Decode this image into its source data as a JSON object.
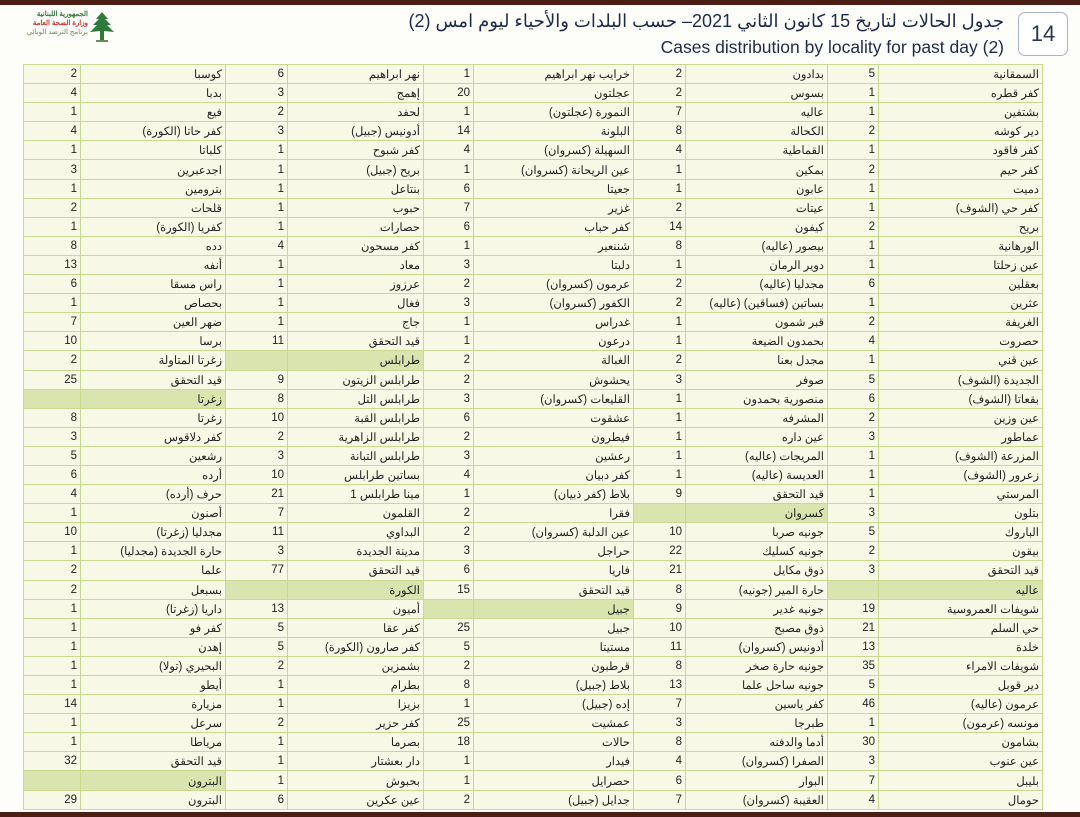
{
  "logo": {
    "line1": "الجمهورية اللبنانية",
    "line2": "وزارة الصحة العامة",
    "line3": "برنامج الترصد الوبائي"
  },
  "header": {
    "title_ar": "جدول الحالات لتاريخ 15 كانون الثاني 2021– حسب البلدات والأحياء ليوم امس (2)",
    "title_en": "Cases distribution by locality for past day (2)",
    "page_number": "14"
  },
  "colors": {
    "border": "#c9d98f",
    "section_highlight": "#d9e4ae",
    "title": "#1e2a4a",
    "band": "#4a1e14"
  },
  "groups": [
    [
      {
        "n": "السمقانية",
        "c": "5"
      },
      {
        "n": "كفر قطره",
        "c": "1"
      },
      {
        "n": "بشتفين",
        "c": "1"
      },
      {
        "n": "دير كوشه",
        "c": "2"
      },
      {
        "n": "كفر فاقود",
        "c": "1"
      },
      {
        "n": "كفر حيم",
        "c": "2"
      },
      {
        "n": "دميت",
        "c": "1"
      },
      {
        "n": "كفر حي (الشوف)",
        "c": "1"
      },
      {
        "n": "بريح",
        "c": "2"
      },
      {
        "n": "الورهانية",
        "c": "1"
      },
      {
        "n": "عين زحلتا",
        "c": "1"
      },
      {
        "n": "بعقلين",
        "c": "6"
      },
      {
        "n": "عثرين",
        "c": "1"
      },
      {
        "n": "الغريفة",
        "c": "2"
      },
      {
        "n": "حصروت",
        "c": "4"
      },
      {
        "n": "عين قني",
        "c": "1"
      },
      {
        "n": "الجديدة (الشوف)",
        "c": "5"
      },
      {
        "n": "بقعاتا (الشوف)",
        "c": "6"
      },
      {
        "n": "عين وزين",
        "c": "2"
      },
      {
        "n": "عماطور",
        "c": "3"
      },
      {
        "n": "المزرعة (الشوف)",
        "c": "1"
      },
      {
        "n": "زعرور (الشوف)",
        "c": "1"
      },
      {
        "n": "المرستي",
        "c": "1"
      },
      {
        "n": "بتلون",
        "c": "3"
      },
      {
        "n": "الباروك",
        "c": "5"
      },
      {
        "n": "بيقون",
        "c": "2"
      },
      {
        "n": "قيد التحقق",
        "c": "3"
      },
      {
        "n": "عاليه",
        "c": "",
        "h": true
      },
      {
        "n": "شويفات العمروسية",
        "c": "19"
      },
      {
        "n": "حي السلم",
        "c": "21"
      },
      {
        "n": "خلدة",
        "c": "13"
      },
      {
        "n": "شويفات الامراء",
        "c": "35"
      },
      {
        "n": "دير قوبل",
        "c": "5"
      },
      {
        "n": "عرمون (عاليه)",
        "c": "46"
      },
      {
        "n": "مونسه (عرمون)",
        "c": "1"
      },
      {
        "n": "بشامون",
        "c": "30"
      },
      {
        "n": "عين عنوب",
        "c": "3"
      },
      {
        "n": "بليبل",
        "c": "7"
      },
      {
        "n": "حومال",
        "c": "4"
      }
    ],
    [
      {
        "n": "بدادون",
        "c": "2"
      },
      {
        "n": "بسوس",
        "c": "2"
      },
      {
        "n": "عاليه",
        "c": "7"
      },
      {
        "n": "الكحالة",
        "c": "8"
      },
      {
        "n": "القماطية",
        "c": "4"
      },
      {
        "n": "بمكين",
        "c": "1"
      },
      {
        "n": "عابون",
        "c": "1"
      },
      {
        "n": "عيتات",
        "c": "2"
      },
      {
        "n": "كيفون",
        "c": "14"
      },
      {
        "n": "بيصور (عاليه)",
        "c": "8"
      },
      {
        "n": "دوير الرمان",
        "c": "1"
      },
      {
        "n": "مجدليا (عاليه)",
        "c": "2"
      },
      {
        "n": "بساتين (فساقين) (عاليه)",
        "c": "2"
      },
      {
        "n": "قبر شمون",
        "c": "1"
      },
      {
        "n": "بحمدون الضيعة",
        "c": "1"
      },
      {
        "n": "مجدل بعنا",
        "c": "2"
      },
      {
        "n": "صوفر",
        "c": "3"
      },
      {
        "n": "منصورية بحمدون",
        "c": "1"
      },
      {
        "n": "المشرفه",
        "c": "1"
      },
      {
        "n": "عين داره",
        "c": "1"
      },
      {
        "n": "المريجات (عاليه)",
        "c": "1"
      },
      {
        "n": "العديسة (عاليه)",
        "c": "1"
      },
      {
        "n": "قيد التحقق",
        "c": "9"
      },
      {
        "n": "كسروان",
        "c": "",
        "h": true
      },
      {
        "n": "جونيه صربا",
        "c": "10"
      },
      {
        "n": "جونيه كسليك",
        "c": "22"
      },
      {
        "n": "ذوق مكايل",
        "c": "21"
      },
      {
        "n": "حارة المير (جونيه)",
        "c": "8"
      },
      {
        "n": "جونيه غدير",
        "c": "9"
      },
      {
        "n": "ذوق مصبح",
        "c": "10"
      },
      {
        "n": "أدونيس (كسروان)",
        "c": "11"
      },
      {
        "n": "جونيه حارة صخر",
        "c": "8"
      },
      {
        "n": "جونيه ساحل علما",
        "c": "13"
      },
      {
        "n": "كفر ياسين",
        "c": "7"
      },
      {
        "n": "طبرجا",
        "c": "3"
      },
      {
        "n": "أدما والدفنه",
        "c": "8"
      },
      {
        "n": "الصفرا (كسروان)",
        "c": "4"
      },
      {
        "n": "البوار",
        "c": "6"
      },
      {
        "n": "العقيبة (كسروان)",
        "c": "7"
      }
    ],
    [
      {
        "n": "خرايب نهر ابراهيم",
        "c": "1"
      },
      {
        "n": "عجلتون",
        "c": "20"
      },
      {
        "n": "النمورة (عجلتون)",
        "c": "1"
      },
      {
        "n": "البلونة",
        "c": "14"
      },
      {
        "n": "السهيلة (كسروان)",
        "c": "4"
      },
      {
        "n": "عين الريحانة (كسروان)",
        "c": "1"
      },
      {
        "n": "جعيتا",
        "c": "6"
      },
      {
        "n": "غزير",
        "c": "7"
      },
      {
        "n": "كفر حباب",
        "c": "6"
      },
      {
        "n": "شننعير",
        "c": "1"
      },
      {
        "n": "دلبتا",
        "c": "3"
      },
      {
        "n": "عرمون (كسروان)",
        "c": "2"
      },
      {
        "n": "الكفور (كسروان)",
        "c": "3"
      },
      {
        "n": "غدراس",
        "c": "1"
      },
      {
        "n": "درعون",
        "c": "1"
      },
      {
        "n": "الغبالة",
        "c": "2"
      },
      {
        "n": "يحشوش",
        "c": "2"
      },
      {
        "n": "القليعات (كسروان)",
        "c": "3"
      },
      {
        "n": "عشقوت",
        "c": "6"
      },
      {
        "n": "فيطرون",
        "c": "2"
      },
      {
        "n": "رعشين",
        "c": "3"
      },
      {
        "n": "كفر دبيان",
        "c": "4"
      },
      {
        "n": "بلاط (كفر ذبيان)",
        "c": "1"
      },
      {
        "n": "فقرا",
        "c": "2"
      },
      {
        "n": "عين الدلبة (كسروان)",
        "c": "2"
      },
      {
        "n": "حراجل",
        "c": "3"
      },
      {
        "n": "فاريا",
        "c": "6"
      },
      {
        "n": "قيد التحقق",
        "c": "15"
      },
      {
        "n": "جبيل",
        "c": "",
        "h": true
      },
      {
        "n": "جبيل",
        "c": "25"
      },
      {
        "n": "مستيتا",
        "c": "5"
      },
      {
        "n": "قرطبون",
        "c": "2"
      },
      {
        "n": "بلاط (جبيل)",
        "c": "8"
      },
      {
        "n": "إده (جبيل)",
        "c": "1"
      },
      {
        "n": "عمشيت",
        "c": "25"
      },
      {
        "n": "حالات",
        "c": "18"
      },
      {
        "n": "فيدار",
        "c": "1"
      },
      {
        "n": "حصرايل",
        "c": "1"
      },
      {
        "n": "جدايل (جبيل)",
        "c": "2"
      }
    ],
    [
      {
        "n": "نهر ابراهيم",
        "c": "6"
      },
      {
        "n": "إهمج",
        "c": "3"
      },
      {
        "n": "لحفد",
        "c": "2"
      },
      {
        "n": "أدونيس (جبيل)",
        "c": "3"
      },
      {
        "n": "كفر شبوح",
        "c": "1"
      },
      {
        "n": "بريح (جبيل)",
        "c": "1"
      },
      {
        "n": "بنتاعل",
        "c": "1"
      },
      {
        "n": "حبوب",
        "c": "1"
      },
      {
        "n": "حصارات",
        "c": "1"
      },
      {
        "n": "كفر مسحون",
        "c": "4"
      },
      {
        "n": "معاد",
        "c": "1"
      },
      {
        "n": "عرزوز",
        "c": "1"
      },
      {
        "n": "فغال",
        "c": "1"
      },
      {
        "n": "جاج",
        "c": "1"
      },
      {
        "n": "قيد التحقق",
        "c": "11"
      },
      {
        "n": "طرابلس",
        "c": "",
        "h": true
      },
      {
        "n": "طرابلس الزيتون",
        "c": "9"
      },
      {
        "n": "طرابلس التل",
        "c": "8"
      },
      {
        "n": "طرابلس القبة",
        "c": "10"
      },
      {
        "n": "طرابلس الزاهرية",
        "c": "2"
      },
      {
        "n": "طرابلس التبانة",
        "c": "3"
      },
      {
        "n": "بساتين طرابلس",
        "c": "10"
      },
      {
        "n": "مينا طرابلس 1",
        "c": "21"
      },
      {
        "n": "القلمون",
        "c": "7"
      },
      {
        "n": "البداوي",
        "c": "11"
      },
      {
        "n": "مدينة الجديدة",
        "c": "3"
      },
      {
        "n": "قيد التحقق",
        "c": "77"
      },
      {
        "n": "الكورة",
        "c": "",
        "h": true
      },
      {
        "n": "أميون",
        "c": "13"
      },
      {
        "n": "كفر عقا",
        "c": "5"
      },
      {
        "n": "كفر صارون (الكورة)",
        "c": "5"
      },
      {
        "n": "بشمزين",
        "c": "2"
      },
      {
        "n": "بطرام",
        "c": "1"
      },
      {
        "n": "بزيزا",
        "c": "1"
      },
      {
        "n": "كفر حزير",
        "c": "2"
      },
      {
        "n": "بصرما",
        "c": "1"
      },
      {
        "n": "دار بعشتار",
        "c": "1"
      },
      {
        "n": "بحبوش",
        "c": "1"
      },
      {
        "n": "عين عكرين",
        "c": "6"
      }
    ],
    [
      {
        "n": "كوسبا",
        "c": "2"
      },
      {
        "n": "بدبا",
        "c": "4"
      },
      {
        "n": "فيع",
        "c": "1"
      },
      {
        "n": "كفر حاتا (الكورة)",
        "c": "4"
      },
      {
        "n": "كلباتا",
        "c": "1"
      },
      {
        "n": "اجدعبرين",
        "c": "3"
      },
      {
        "n": "بترومين",
        "c": "1"
      },
      {
        "n": "قلحات",
        "c": "2"
      },
      {
        "n": "كفريا (الكورة)",
        "c": "1"
      },
      {
        "n": "دده",
        "c": "8"
      },
      {
        "n": "أنفه",
        "c": "13"
      },
      {
        "n": "راس مسقا",
        "c": "6"
      },
      {
        "n": "بحصاص",
        "c": "1"
      },
      {
        "n": "ضهر العين",
        "c": "7"
      },
      {
        "n": "برسا",
        "c": "10"
      },
      {
        "n": "زغرتا المتاولة",
        "c": "2"
      },
      {
        "n": "قيد التحقق",
        "c": "25"
      },
      {
        "n": "زغرتا",
        "c": "",
        "h": true
      },
      {
        "n": "زغرتا",
        "c": "8"
      },
      {
        "n": "كفر دلاقوس",
        "c": "3"
      },
      {
        "n": "رشعين",
        "c": "5"
      },
      {
        "n": "أرده",
        "c": "6"
      },
      {
        "n": "حرف (أرده)",
        "c": "4"
      },
      {
        "n": "أصنون",
        "c": "1"
      },
      {
        "n": "مجدليا (زغرتا)",
        "c": "10"
      },
      {
        "n": "حارة الجديدة (مجدليا)",
        "c": "1"
      },
      {
        "n": "علما",
        "c": "2"
      },
      {
        "n": "بسبعل",
        "c": "2"
      },
      {
        "n": "داريا (زغرتا)",
        "c": "1"
      },
      {
        "n": "كفر فو",
        "c": "1"
      },
      {
        "n": "إهدن",
        "c": "1"
      },
      {
        "n": "البحيري (تولا)",
        "c": "1"
      },
      {
        "n": "أيطو",
        "c": "1"
      },
      {
        "n": "مزيارة",
        "c": "14"
      },
      {
        "n": "سرعل",
        "c": "1"
      },
      {
        "n": "مرياطا",
        "c": "1"
      },
      {
        "n": "قيد التحقق",
        "c": "32"
      },
      {
        "n": "البترون",
        "c": "",
        "h": true
      },
      {
        "n": "البترون",
        "c": "29"
      }
    ]
  ]
}
